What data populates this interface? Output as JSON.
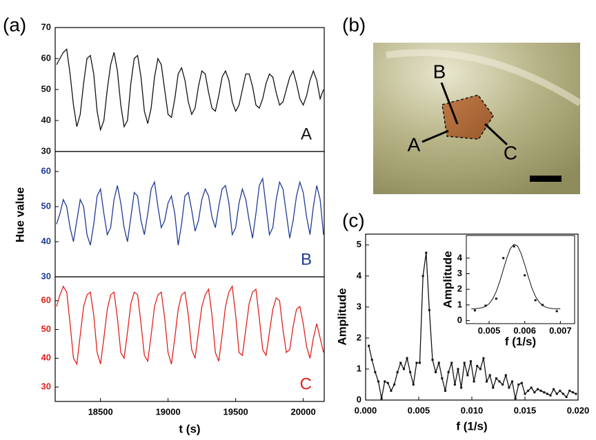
{
  "panel_labels": [
    "(a)",
    "(b)",
    "(c)"
  ],
  "photo": {
    "labels": [
      "B",
      "A",
      "C"
    ]
  },
  "chart_data": [
    {
      "type": "line",
      "xlabel": "t (s)",
      "ylabel": "Hue value",
      "xlim": [
        18165,
        20155
      ],
      "xticks": [
        18500,
        19000,
        19500,
        20000
      ],
      "x": [
        18175,
        18200,
        18225,
        18250,
        18275,
        18300,
        18325,
        18350,
        18375,
        18400,
        18425,
        18450,
        18475,
        18500,
        18525,
        18550,
        18575,
        18600,
        18625,
        18650,
        18675,
        18700,
        18725,
        18750,
        18775,
        18800,
        18825,
        18850,
        18875,
        18900,
        18925,
        18950,
        18975,
        19000,
        19025,
        19050,
        19075,
        19100,
        19125,
        19150,
        19175,
        19200,
        19225,
        19250,
        19275,
        19300,
        19325,
        19350,
        19375,
        19400,
        19425,
        19450,
        19475,
        19500,
        19525,
        19550,
        19575,
        19600,
        19625,
        19650,
        19675,
        19700,
        19725,
        19750,
        19775,
        19800,
        19825,
        19850,
        19875,
        19900,
        19925,
        19950,
        19975,
        20000,
        20025,
        20050,
        20075,
        20100,
        20125,
        20150
      ],
      "series": [
        {
          "name": "A",
          "color": "#111111",
          "ylim": [
            30,
            70
          ],
          "yticks": [
            30,
            40,
            50,
            60,
            70
          ],
          "values": [
            58,
            60,
            62,
            63,
            55,
            45,
            38,
            42,
            52,
            60,
            61,
            55,
            43,
            37,
            40,
            50,
            58,
            62,
            56,
            45,
            38,
            40,
            52,
            60,
            61,
            54,
            43,
            39,
            44,
            54,
            60,
            58,
            50,
            42,
            41,
            47,
            55,
            57,
            53,
            46,
            42,
            44,
            51,
            56,
            55,
            49,
            44,
            43,
            48,
            54,
            56,
            53,
            46,
            43,
            45,
            50,
            55,
            55,
            51,
            45,
            44,
            47,
            52,
            55,
            54,
            49,
            45,
            46,
            50,
            54,
            56,
            52,
            47,
            45,
            48,
            53,
            56,
            53,
            47,
            50
          ]
        },
        {
          "name": "B",
          "color": "#1f3a93",
          "ylim": [
            30,
            65.7
          ],
          "yticks": [
            30,
            40,
            50,
            60
          ],
          "values": [
            45,
            48,
            52,
            50,
            44,
            40,
            46,
            52,
            50,
            42,
            39,
            45,
            53,
            55,
            48,
            42,
            44,
            52,
            56,
            51,
            44,
            40,
            47,
            54,
            53,
            46,
            42,
            48,
            55,
            57,
            50,
            44,
            46,
            51,
            53,
            48,
            39,
            45,
            53,
            54,
            49,
            43,
            46,
            52,
            55,
            53,
            47,
            44,
            50,
            55,
            56,
            51,
            42,
            44,
            51,
            55,
            52,
            46,
            41,
            48,
            56,
            58,
            50,
            42,
            44,
            52,
            57,
            55,
            48,
            41,
            46,
            53,
            57,
            54,
            47,
            42,
            50,
            56,
            52,
            42
          ]
        },
        {
          "name": "C",
          "color": "#e0201b",
          "ylim": [
            25,
            68.3
          ],
          "yticks": [
            30,
            40,
            50,
            60
          ],
          "values": [
            58,
            62,
            65,
            63,
            52,
            40,
            38,
            48,
            58,
            62,
            63,
            55,
            42,
            38,
            47,
            57,
            62,
            63,
            54,
            42,
            40,
            49,
            59,
            63,
            62,
            52,
            41,
            39,
            48,
            58,
            62,
            63,
            54,
            42,
            38,
            47,
            57,
            62,
            63,
            55,
            43,
            40,
            49,
            58,
            62,
            64,
            55,
            42,
            39,
            48,
            58,
            63,
            65,
            55,
            42,
            41,
            50,
            59,
            63,
            64,
            54,
            43,
            41,
            49,
            57,
            61,
            60,
            50,
            42,
            43,
            51,
            57,
            58,
            52,
            44,
            40,
            47,
            52,
            47,
            42
          ]
        }
      ]
    },
    {
      "type": "line",
      "xlabel": "f (1/s)",
      "ylabel": "Amplitude",
      "xlim": [
        0,
        0.02
      ],
      "xticks": [
        {
          "value": 0,
          "label": "0.000"
        },
        0.005,
        {
          "value": 0.01,
          "label": "0.010"
        },
        0.015,
        {
          "value": 0.02,
          "label": "0.020"
        }
      ],
      "ylim": [
        0,
        5.35
      ],
      "yticks": [
        0,
        1,
        2,
        3,
        4,
        5
      ],
      "color": "#111111",
      "x": [
        0.0003,
        0.0006,
        0.0009,
        0.0012,
        0.0015,
        0.0018,
        0.0021,
        0.0024,
        0.0027,
        0.003,
        0.0033,
        0.0036,
        0.0039,
        0.0042,
        0.0045,
        0.0048,
        0.0051,
        0.0054,
        0.0057,
        0.006,
        0.0063,
        0.0066,
        0.0069,
        0.0072,
        0.0075,
        0.0078,
        0.0081,
        0.0084,
        0.0087,
        0.009,
        0.0093,
        0.0096,
        0.0099,
        0.0102,
        0.0105,
        0.0108,
        0.0111,
        0.0114,
        0.0117,
        0.012,
        0.0123,
        0.0126,
        0.0129,
        0.0132,
        0.0135,
        0.0138,
        0.0141,
        0.0144,
        0.0147,
        0.015,
        0.0153,
        0.0156,
        0.0159,
        0.0162,
        0.0165,
        0.0168,
        0.0171,
        0.0174,
        0.0177,
        0.018,
        0.0183,
        0.0186,
        0.0189,
        0.0192,
        0.0195,
        0.0198
      ],
      "values": [
        1.75,
        1.3,
        0.9,
        0.6,
        0.05,
        0.6,
        0.55,
        0.3,
        0.5,
        0.9,
        1.2,
        1.0,
        1.35,
        0.9,
        0.5,
        1.2,
        1.2,
        4.0,
        4.75,
        2.9,
        1.3,
        0.9,
        1.2,
        0.7,
        0.3,
        0.9,
        1.2,
        0.5,
        1.0,
        0.4,
        1.2,
        0.8,
        1.25,
        0.6,
        1.1,
        1.0,
        1.35,
        0.6,
        0.8,
        0.4,
        0.7,
        0.6,
        0.5,
        0.8,
        0.4,
        0.6,
        0.05,
        0.5,
        0.55,
        0.2,
        0.3,
        0.4,
        0.25,
        0.35,
        0.3,
        0.25,
        0.2,
        0.15,
        0.35,
        0.2,
        0.3,
        0.2,
        0.1,
        0.3,
        0.25,
        0.2
      ]
    },
    {
      "type": "scatter",
      "xlabel": "f (1/s)",
      "ylabel": "Amplitude",
      "xlim": [
        0.00436,
        0.0074
      ],
      "xticks": [
        0.005,
        0.006,
        0.007
      ],
      "ylim": [
        -0.2,
        5.45
      ],
      "yticks": [
        0,
        1,
        2,
        3,
        4
      ],
      "color": "#111111",
      "points": {
        "x": [
          0.0046,
          0.0049,
          0.0052,
          0.0054,
          0.0057,
          0.006,
          0.0063,
          0.0065,
          0.0069
        ],
        "values": [
          0.65,
          0.95,
          1.4,
          4.0,
          4.75,
          2.9,
          1.3,
          1.0,
          0.6
        ]
      },
      "fit": {
        "x": [
          0.0045,
          0.0046,
          0.0047,
          0.0048,
          0.0049,
          0.005,
          0.0051,
          0.0052,
          0.0053,
          0.0054,
          0.0055,
          0.0056,
          0.0057,
          0.0058,
          0.0059,
          0.006,
          0.0061,
          0.0062,
          0.0063,
          0.0064,
          0.0065,
          0.0066,
          0.0067,
          0.0068,
          0.0069,
          0.007
        ],
        "values": [
          0.75,
          0.76,
          0.78,
          0.82,
          0.91,
          1.08,
          1.38,
          1.86,
          2.5,
          3.27,
          4.03,
          4.62,
          4.89,
          4.77,
          4.29,
          3.58,
          2.8,
          2.1,
          1.55,
          1.19,
          0.96,
          0.85,
          0.79,
          0.76,
          0.75,
          0.75
        ]
      }
    }
  ]
}
